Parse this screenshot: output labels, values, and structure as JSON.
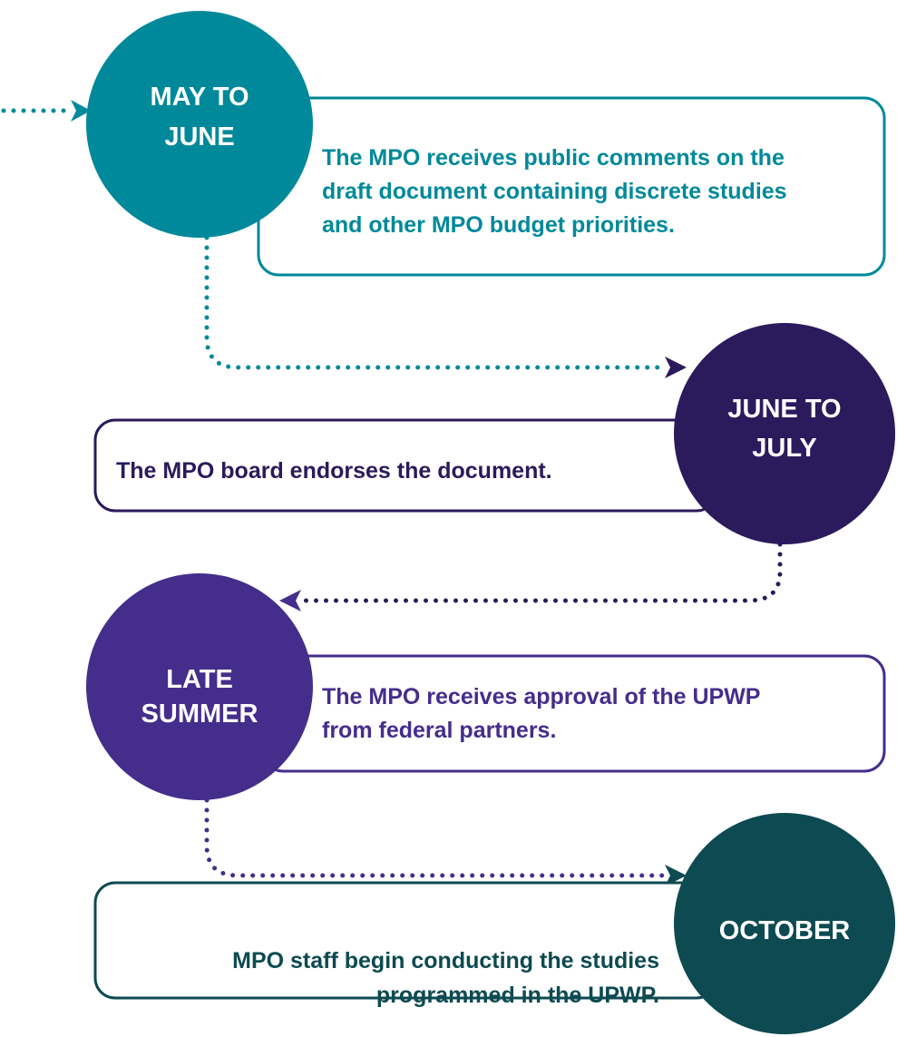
{
  "steps": [
    {
      "period": [
        "MAY TO",
        "JUNE"
      ],
      "description": [
        "The MPO receives public comments on the",
        "draft document containing discrete studies",
        "and other MPO budget priorities."
      ]
    },
    {
      "period": [
        "JUNE TO",
        "JULY"
      ],
      "description": [
        "The MPO board endorses the document."
      ]
    },
    {
      "period": [
        "LATE",
        "SUMMER"
      ],
      "description": [
        "The MPO receives approval of the UPWP",
        "from federal partners."
      ]
    },
    {
      "period": [
        "OCTOBER"
      ],
      "description": [
        "MPO staff begin conducting the studies",
        "programmed in the UPWP."
      ]
    }
  ]
}
